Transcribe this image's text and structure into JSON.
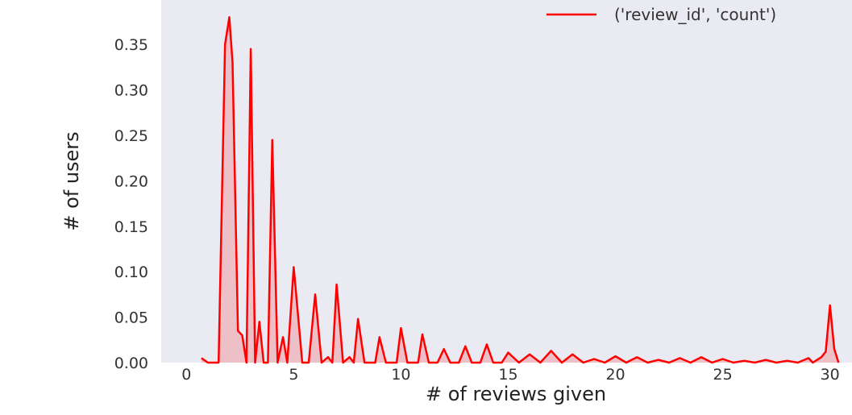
{
  "chart_data": {
    "type": "line",
    "title": "",
    "xlabel": "# of reviews given",
    "ylabel": "# of users",
    "xlim": [
      -0.5,
      30.5
    ],
    "ylim": [
      0,
      0.39
    ],
    "x_ticks": [
      0,
      5,
      10,
      15,
      20,
      25,
      30
    ],
    "y_ticks": [
      0.0,
      0.05,
      0.1,
      0.15,
      0.2,
      0.25,
      0.3,
      0.35
    ],
    "grid": false,
    "legend": "top-right",
    "background_color": "#eaeaf2",
    "series": [
      {
        "name": "('review_id', 'count')",
        "color": "#ff0000",
        "fill": true,
        "x": [
          0.7,
          1.0,
          1.5,
          1.8,
          2.0,
          2.15,
          2.4,
          2.6,
          2.8,
          3.0,
          3.2,
          3.4,
          3.6,
          3.8,
          4.0,
          4.25,
          4.5,
          4.7,
          5.0,
          5.4,
          5.7,
          6.0,
          6.3,
          6.6,
          6.8,
          7.0,
          7.3,
          7.6,
          7.8,
          8.0,
          8.3,
          8.6,
          8.8,
          9.0,
          9.3,
          9.6,
          9.8,
          10.0,
          10.3,
          10.6,
          10.8,
          11.0,
          11.3,
          11.7,
          12.0,
          12.3,
          12.7,
          13.0,
          13.3,
          13.7,
          14.0,
          14.3,
          14.7,
          15.0,
          15.5,
          16.0,
          16.5,
          17.0,
          17.5,
          18.0,
          18.5,
          19.0,
          19.5,
          20.0,
          20.5,
          21.0,
          21.5,
          22.0,
          22.5,
          23.0,
          23.5,
          24.0,
          24.5,
          25.0,
          25.5,
          26.0,
          26.5,
          27.0,
          27.5,
          28.0,
          28.5,
          29.0,
          29.2,
          29.4,
          29.6,
          29.8,
          30.0,
          30.2,
          30.4
        ],
        "y": [
          0.005,
          0.0,
          0.0,
          0.35,
          0.38,
          0.33,
          0.035,
          0.03,
          0.0,
          0.345,
          0.0,
          0.045,
          0.0,
          0.0,
          0.245,
          0.0,
          0.028,
          0.0,
          0.105,
          0.0,
          0.0,
          0.075,
          0.0,
          0.006,
          0.0,
          0.086,
          0.0,
          0.006,
          0.0,
          0.048,
          0.0,
          0.0,
          0.0,
          0.028,
          0.0,
          0.0,
          0.0,
          0.038,
          0.0,
          0.0,
          0.0,
          0.031,
          0.0,
          0.0,
          0.015,
          0.0,
          0.0,
          0.018,
          0.0,
          0.0,
          0.02,
          0.0,
          0.0,
          0.011,
          0.0,
          0.009,
          0.0,
          0.013,
          0.0,
          0.009,
          0.0,
          0.004,
          0.0,
          0.007,
          0.0,
          0.006,
          0.0,
          0.003,
          0.0,
          0.005,
          0.0,
          0.006,
          0.0,
          0.004,
          0.0,
          0.002,
          0.0,
          0.003,
          0.0,
          0.002,
          0.0,
          0.005,
          0.0,
          0.003,
          0.006,
          0.012,
          0.063,
          0.015,
          0.0
        ]
      }
    ]
  }
}
